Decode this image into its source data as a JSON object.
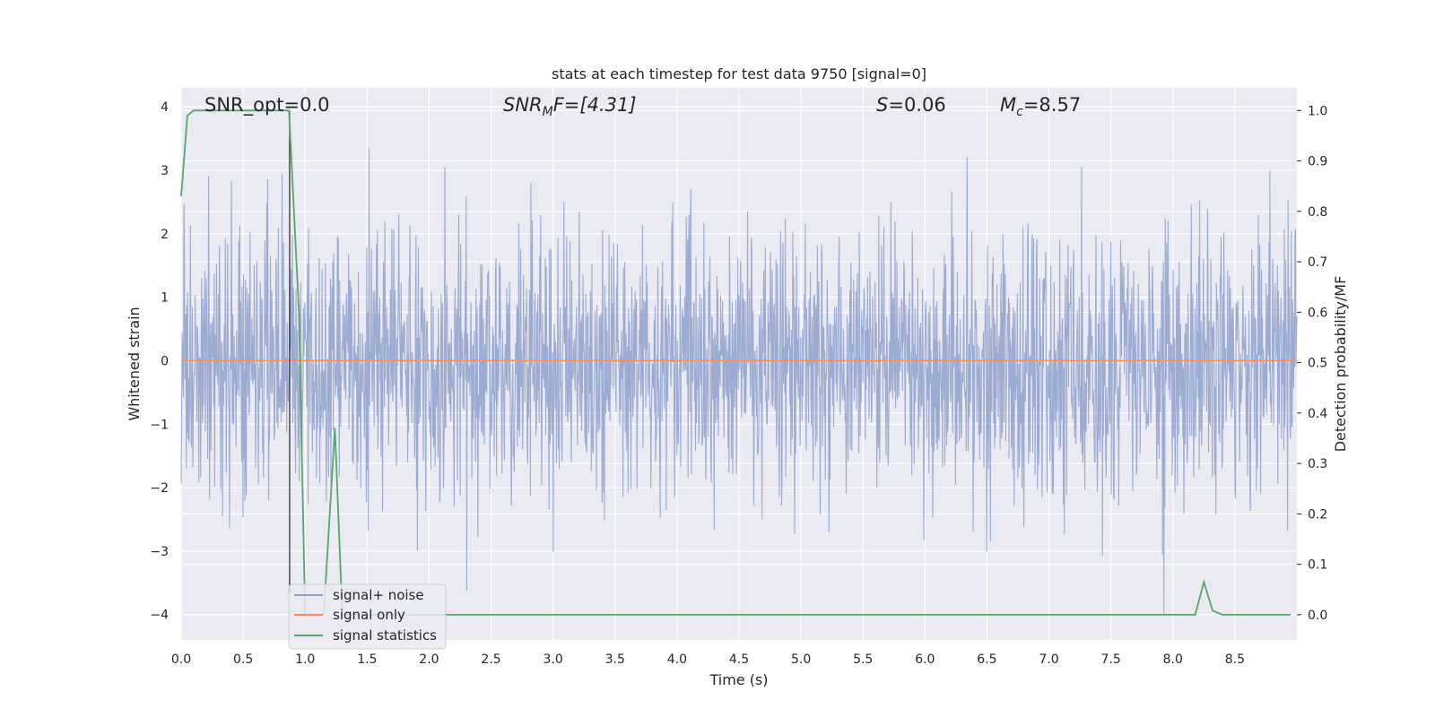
{
  "chart_data": {
    "type": "line",
    "title": "stats at each timestep for test data 9750 [signal=0]",
    "xlabel": "Time (s)",
    "ylabel_left": "Whitened strain",
    "ylabel_right": "Detection probability/MF",
    "xlim": [
      0,
      9.0
    ],
    "ylim_left": [
      -4.4,
      4.3
    ],
    "ylim_right": [
      -0.05,
      1.045
    ],
    "x_ticks": [
      0.0,
      0.5,
      1.0,
      1.5,
      2.0,
      2.5,
      3.0,
      3.5,
      4.0,
      4.5,
      5.0,
      5.5,
      6.0,
      6.5,
      7.0,
      7.5,
      8.0,
      8.5
    ],
    "x_tick_labels": [
      "0.0",
      "0.5",
      "1.0",
      "1.5",
      "2.0",
      "2.5",
      "3.0",
      "3.5",
      "4.0",
      "4.5",
      "5.0",
      "5.5",
      "6.0",
      "6.5",
      "7.0",
      "7.5",
      "8.0",
      "8.5"
    ],
    "y_left_ticks": [
      4,
      3,
      2,
      1,
      0,
      -1,
      -2,
      -3,
      -4
    ],
    "y_left_tick_labels": [
      "4",
      "3",
      "2",
      "1",
      "0",
      "−1",
      "−2",
      "−3",
      "−4"
    ],
    "y_right_ticks": [
      1.0,
      0.9,
      0.8,
      0.7,
      0.6,
      0.5,
      0.4,
      0.3,
      0.2,
      0.1,
      0.0
    ],
    "y_right_tick_labels": [
      "1.0",
      "0.9",
      "0.8",
      "0.7",
      "0.6",
      "0.5",
      "0.4",
      "0.3",
      "0.2",
      "0.1",
      "0.0"
    ],
    "grid": true,
    "legend_position": "lower-left",
    "marker_x": 0.875,
    "annotations": {
      "snr_opt": "SNR_opt=0.0",
      "snr_mf_main": "SNR",
      "snr_mf_sub": "M",
      "snr_mf_rest": "F=[4.31]",
      "s_main": "S",
      "s_rest": "=0.06",
      "mc_main": "M",
      "mc_sub": "c",
      "mc_rest": "=8.57"
    },
    "series": [
      {
        "name": "signal+ noise",
        "color": "#8da0cb",
        "axis": "left",
        "description_range": [
          -4.0,
          4.0
        ],
        "seed": 9750
      },
      {
        "name": "signal only",
        "color": "#fc8d62",
        "axis": "left",
        "constant": 0
      },
      {
        "name": "signal statistics",
        "color": "#55a868",
        "axis": "right",
        "x": [
          0.0,
          0.05,
          0.1,
          0.2,
          0.4,
          0.6,
          0.8,
          0.87,
          0.95,
          1.0,
          1.05,
          1.15,
          1.24,
          1.3,
          1.35,
          1.45,
          2.0,
          3.0,
          4.0,
          5.0,
          6.0,
          7.0,
          8.0,
          8.18,
          8.25,
          8.32,
          8.4,
          8.6,
          8.95
        ],
        "y": [
          0.83,
          0.99,
          1.0,
          1.0,
          1.0,
          1.0,
          1.0,
          1.0,
          0.6,
          0.0,
          0.0,
          0.0,
          0.37,
          0.0,
          0.0,
          0.0,
          0.0,
          0.0,
          0.0,
          0.0,
          0.0,
          0.0,
          0.0,
          0.0,
          0.065,
          0.008,
          0.0,
          0.0,
          0.0
        ]
      }
    ]
  }
}
